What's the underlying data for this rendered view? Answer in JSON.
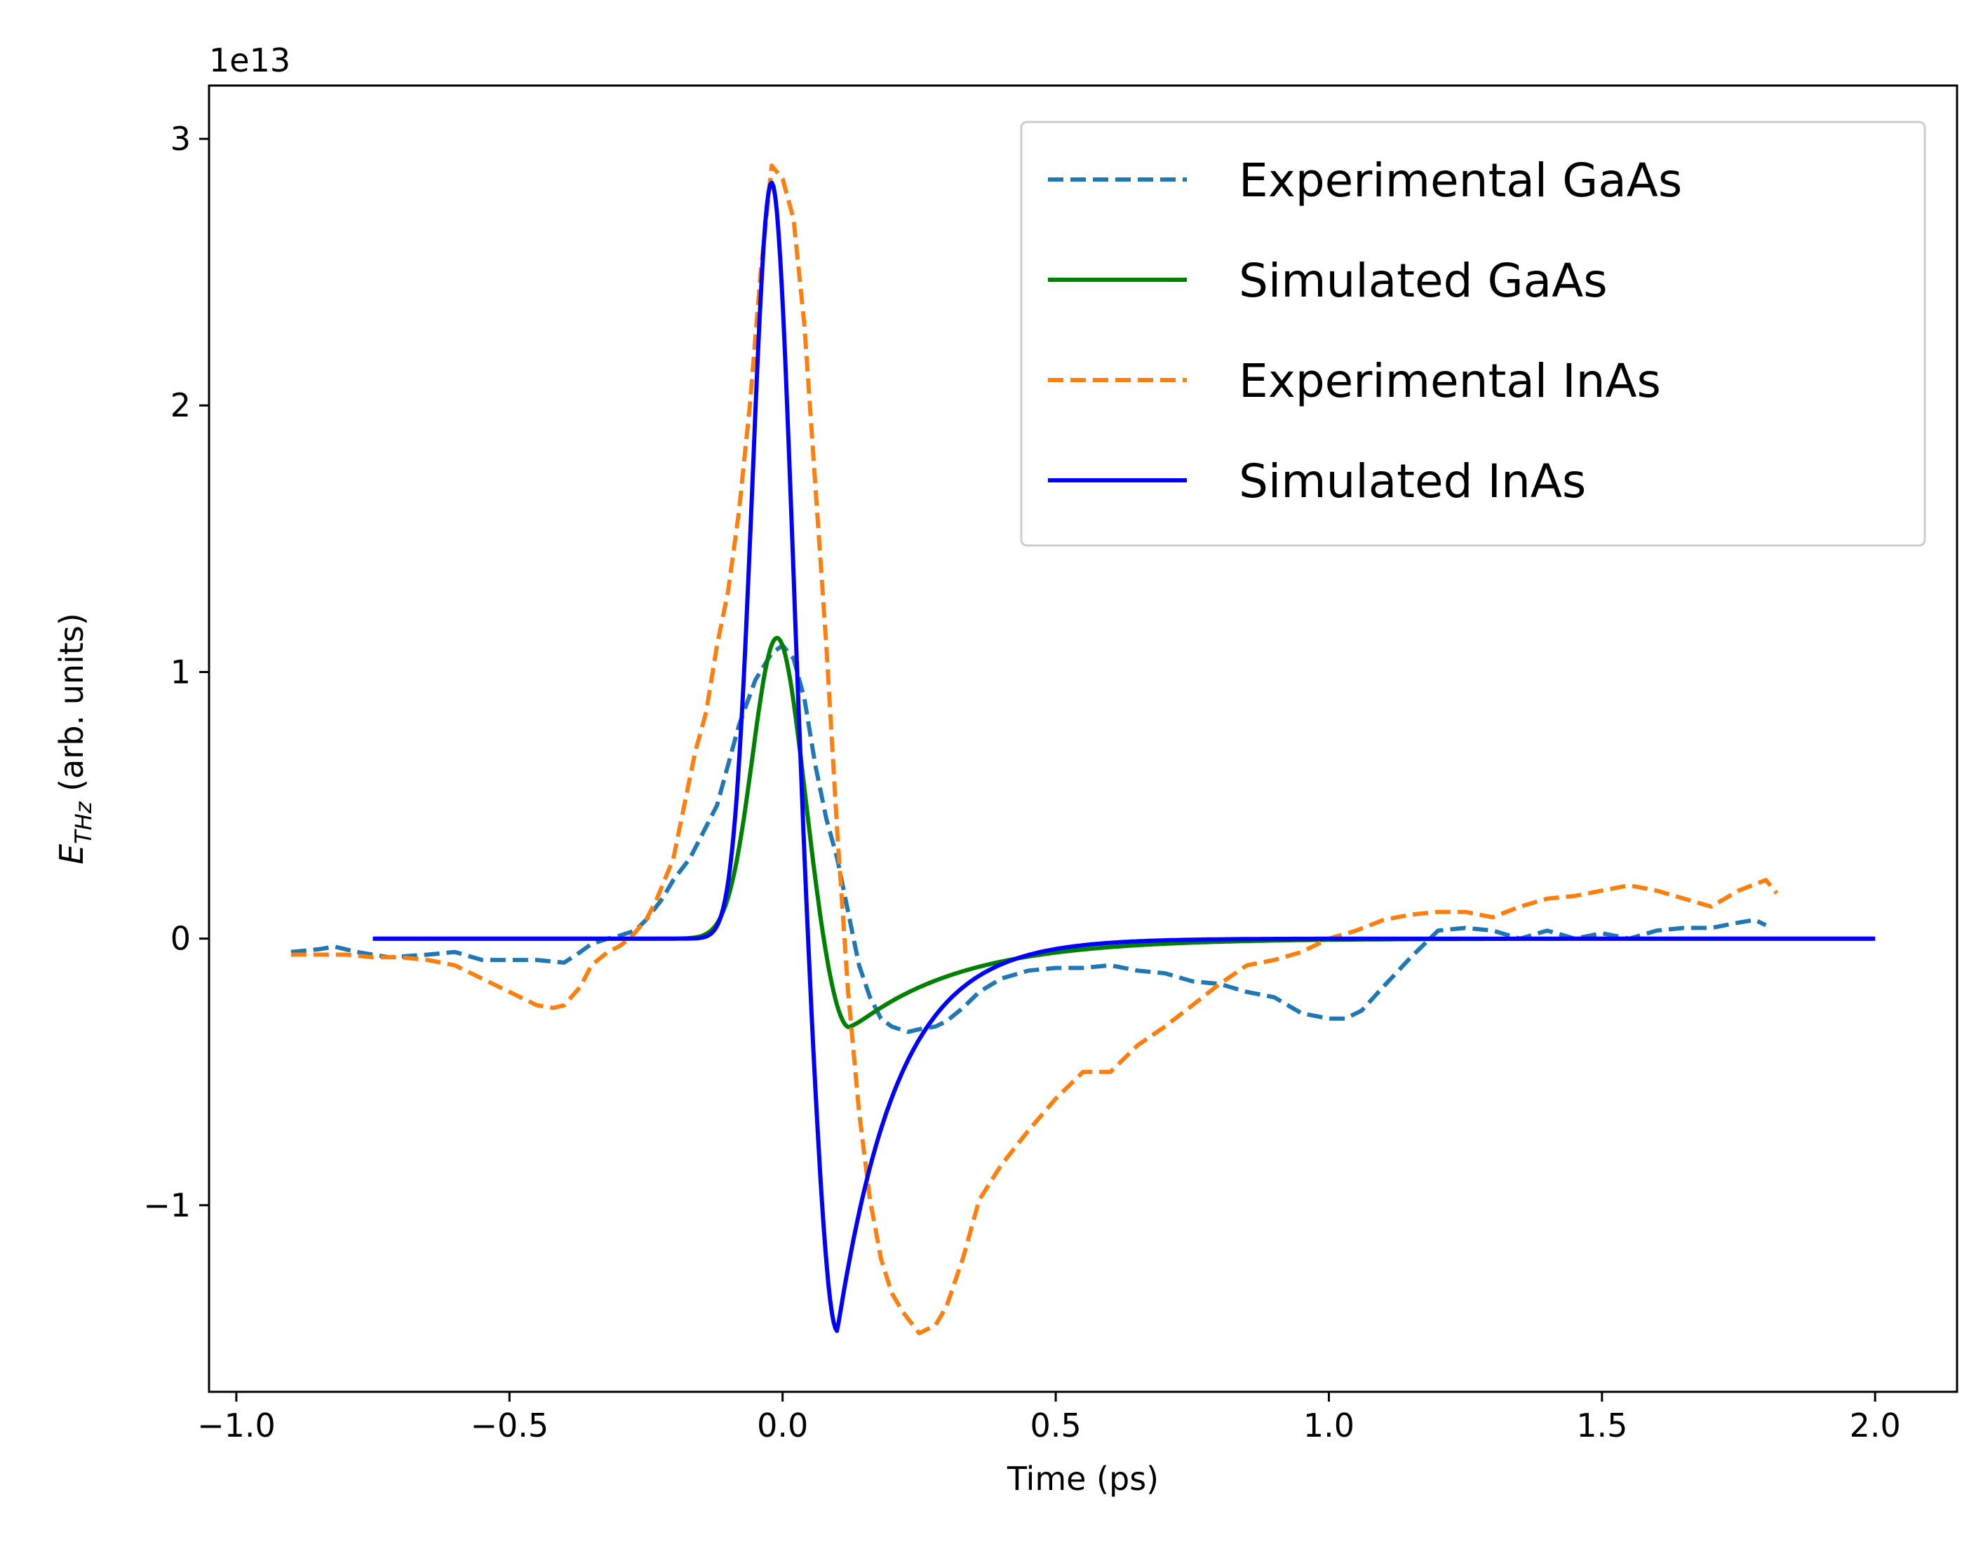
{
  "chart_data": {
    "type": "line",
    "title": "",
    "xlabel": "Time (ps)",
    "ylabel_main": "E",
    "ylabel_sub": "THz",
    "ylabel_rest": " (arb. units)",
    "offset_text": "1e13",
    "xlim": [
      -1.05,
      2.15
    ],
    "ylim": [
      -1.7,
      3.2
    ],
    "x_ticks": [
      -1.0,
      -0.5,
      0.0,
      0.5,
      1.0,
      1.5,
      2.0
    ],
    "x_tick_labels": [
      "−1.0",
      "−0.5",
      "0.0",
      "0.5",
      "1.0",
      "1.5",
      "2.0"
    ],
    "y_ticks": [
      -1,
      0,
      1,
      2,
      3
    ],
    "y_tick_labels": [
      "−1",
      "0",
      "1",
      "2",
      "3"
    ],
    "grid": false,
    "legend_position": "top-right",
    "series": [
      {
        "name": "Experimental GaAs",
        "color": "#1f77b4",
        "style": "dashed",
        "x": [
          -0.9,
          -0.85,
          -0.82,
          -0.78,
          -0.72,
          -0.65,
          -0.6,
          -0.55,
          -0.5,
          -0.45,
          -0.4,
          -0.37,
          -0.35,
          -0.32,
          -0.3,
          -0.27,
          -0.25,
          -0.22,
          -0.2,
          -0.17,
          -0.15,
          -0.12,
          -0.1,
          -0.08,
          -0.05,
          -0.02,
          0.0,
          0.02,
          0.04,
          0.06,
          0.08,
          0.1,
          0.12,
          0.14,
          0.16,
          0.18,
          0.2,
          0.23,
          0.25,
          0.28,
          0.3,
          0.33,
          0.36,
          0.4,
          0.45,
          0.5,
          0.55,
          0.6,
          0.65,
          0.7,
          0.75,
          0.8,
          0.85,
          0.9,
          0.95,
          1.0,
          1.03,
          1.06,
          1.1,
          1.15,
          1.2,
          1.25,
          1.3,
          1.35,
          1.4,
          1.45,
          1.5,
          1.55,
          1.6,
          1.65,
          1.7,
          1.75,
          1.78,
          1.8
        ],
        "y": [
          -0.05,
          -0.04,
          -0.03,
          -0.05,
          -0.07,
          -0.06,
          -0.05,
          -0.08,
          -0.08,
          -0.08,
          -0.09,
          -0.05,
          -0.02,
          0.0,
          0.01,
          0.03,
          0.07,
          0.15,
          0.22,
          0.3,
          0.38,
          0.5,
          0.65,
          0.8,
          0.97,
          1.07,
          1.1,
          1.05,
          0.9,
          0.65,
          0.45,
          0.3,
          0.1,
          -0.1,
          -0.22,
          -0.3,
          -0.33,
          -0.35,
          -0.34,
          -0.33,
          -0.31,
          -0.26,
          -0.2,
          -0.15,
          -0.12,
          -0.11,
          -0.11,
          -0.1,
          -0.12,
          -0.13,
          -0.16,
          -0.17,
          -0.2,
          -0.22,
          -0.28,
          -0.3,
          -0.3,
          -0.27,
          -0.18,
          -0.07,
          0.03,
          0.04,
          0.03,
          0.0,
          0.03,
          0.0,
          0.02,
          0.0,
          0.03,
          0.04,
          0.04,
          0.06,
          0.07,
          0.05
        ]
      },
      {
        "name": "Simulated GaAs",
        "color": "#008000",
        "style": "solid",
        "model": {
          "t0": -0.01,
          "sigma": 0.045,
          "amp": 1.13,
          "neg_amp": -0.35,
          "neg_t0": 0.12,
          "neg_rise": 0.04,
          "tau": 0.2
        },
        "x_start": -0.75,
        "x_end": 2.0
      },
      {
        "name": "Experimental InAs",
        "color": "#ff7f0e",
        "style": "dashed",
        "x": [
          -0.9,
          -0.85,
          -0.8,
          -0.75,
          -0.7,
          -0.65,
          -0.6,
          -0.55,
          -0.5,
          -0.45,
          -0.42,
          -0.4,
          -0.37,
          -0.35,
          -0.32,
          -0.3,
          -0.28,
          -0.25,
          -0.23,
          -0.2,
          -0.18,
          -0.16,
          -0.14,
          -0.12,
          -0.1,
          -0.08,
          -0.06,
          -0.04,
          -0.02,
          0.0,
          0.02,
          0.04,
          0.06,
          0.08,
          0.1,
          0.12,
          0.14,
          0.16,
          0.18,
          0.2,
          0.22,
          0.25,
          0.28,
          0.3,
          0.33,
          0.36,
          0.4,
          0.45,
          0.5,
          0.55,
          0.6,
          0.65,
          0.7,
          0.75,
          0.8,
          0.85,
          0.9,
          0.95,
          1.0,
          1.05,
          1.1,
          1.15,
          1.2,
          1.25,
          1.3,
          1.35,
          1.4,
          1.45,
          1.5,
          1.55,
          1.6,
          1.65,
          1.7,
          1.75,
          1.8,
          1.82
        ],
        "y": [
          -0.06,
          -0.06,
          -0.06,
          -0.07,
          -0.07,
          -0.08,
          -0.1,
          -0.15,
          -0.2,
          -0.25,
          -0.26,
          -0.25,
          -0.18,
          -0.1,
          -0.05,
          -0.03,
          0.0,
          0.07,
          0.15,
          0.3,
          0.5,
          0.7,
          0.85,
          1.1,
          1.3,
          1.6,
          2.0,
          2.5,
          2.9,
          2.85,
          2.7,
          2.3,
          1.7,
          1.1,
          0.4,
          -0.2,
          -0.65,
          -0.98,
          -1.2,
          -1.33,
          -1.4,
          -1.48,
          -1.45,
          -1.38,
          -1.2,
          -0.98,
          -0.85,
          -0.72,
          -0.6,
          -0.5,
          -0.5,
          -0.4,
          -0.33,
          -0.25,
          -0.17,
          -0.1,
          -0.08,
          -0.05,
          0.0,
          0.03,
          0.07,
          0.09,
          0.1,
          0.1,
          0.08,
          0.12,
          0.15,
          0.16,
          0.18,
          0.2,
          0.18,
          0.15,
          0.12,
          0.18,
          0.22,
          0.17
        ]
      },
      {
        "name": "Simulated InAs",
        "color": "#0000ff",
        "style": "solid",
        "model": {
          "t0": -0.02,
          "sigma": 0.035,
          "amp": 2.84,
          "neg_amp": -1.48,
          "neg_t0": 0.1,
          "neg_rise": 0.035,
          "tau": 0.11
        },
        "x_start": -0.75,
        "x_end": 2.0
      }
    ]
  }
}
